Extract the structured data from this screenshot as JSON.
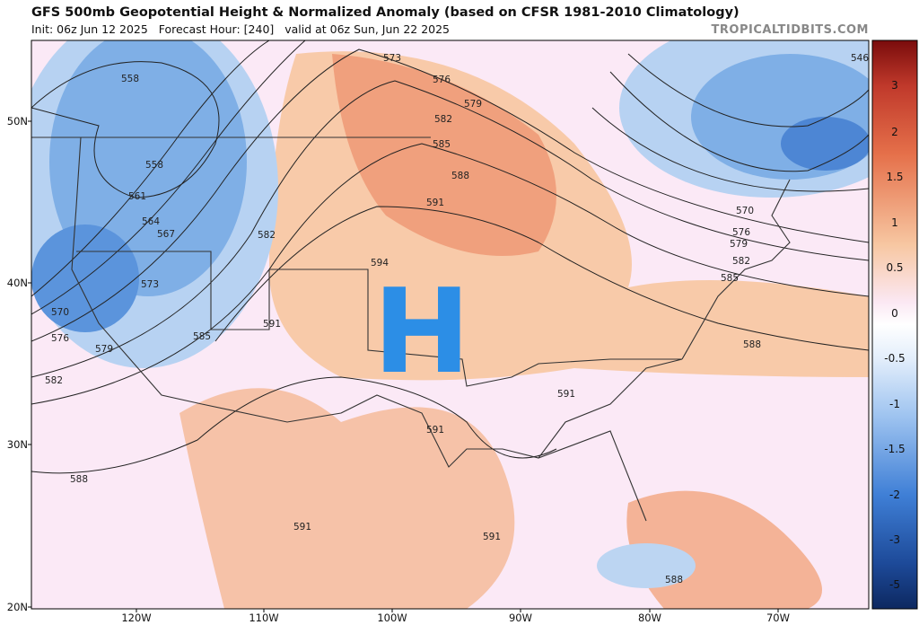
{
  "header": {
    "title": "GFS 500mb Geopotential Height & Normalized Anomaly (based on CFSR 1981-2010 Climatology)",
    "subtitle": "Init: 06z Jun 12 2025   Forecast Hour: [240]   valid at 06z Sun, Jun 22 2025",
    "site": "TROPICALTIDBITS.COM"
  },
  "marker": "H",
  "lat_labels": [
    "50N",
    "40N",
    "30N",
    "20N"
  ],
  "lon_labels": [
    "120W",
    "110W",
    "100W",
    "90W",
    "80W",
    "70W"
  ],
  "colorbar_labels": [
    3,
    2,
    1.5,
    1,
    0.5,
    0,
    -0.5,
    -1,
    -1.5,
    -2,
    -3,
    -5
  ],
  "contour_labels": [
    558,
    558,
    561,
    564,
    567,
    570,
    573,
    576,
    579,
    582,
    585,
    591,
    582,
    573,
    576,
    579,
    582,
    585,
    588,
    591,
    594,
    588,
    591,
    591,
    591,
    591,
    588,
    585,
    582,
    579,
    576,
    570,
    546,
    588
  ]
}
